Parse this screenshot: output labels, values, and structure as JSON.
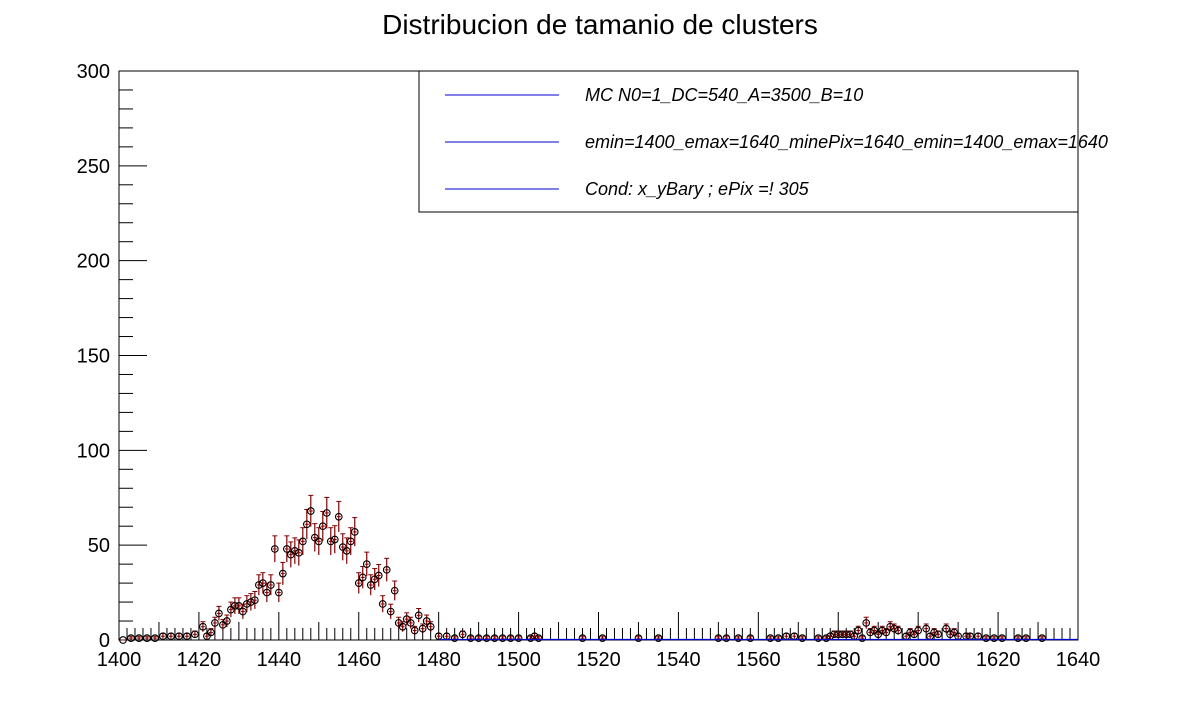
{
  "chart_data": {
    "type": "scatter",
    "title": "Distribucion de tamanio de clusters",
    "xlabel": "",
    "ylabel": "",
    "xlim": [
      1400,
      1640
    ],
    "ylim": [
      0,
      300
    ],
    "x_ticks": [
      1400,
      1420,
      1440,
      1460,
      1480,
      1500,
      1520,
      1540,
      1560,
      1580,
      1600,
      1620,
      1640
    ],
    "y_ticks": [
      0,
      50,
      100,
      150,
      200,
      250,
      300
    ],
    "grid": false,
    "legend_position": "top-right",
    "legend": [
      "MC N0=1_DC=540_A=3500_B=10",
      "emin=1400_emax=1640_minePix=1640_emin=1400_emax=1640",
      "Cond: x_yBary ; ePix =! 305"
    ],
    "colors": {
      "markers": "#000000",
      "error_bars": "#800000",
      "legend_lines": "#0000cc",
      "fit_line": "#0000cc"
    },
    "series": [
      {
        "x": [
          1401,
          1403,
          1405,
          1407,
          1409,
          1411,
          1413,
          1415,
          1417,
          1419,
          1421,
          1422,
          1423,
          1424,
          1425,
          1426,
          1427,
          1428,
          1429,
          1430,
          1431,
          1432,
          1433,
          1434,
          1435,
          1436,
          1437,
          1438,
          1439,
          1440,
          1441,
          1442,
          1443,
          1444,
          1445,
          1446,
          1447,
          1448,
          1449,
          1450,
          1451,
          1452,
          1453,
          1454,
          1455,
          1456,
          1457,
          1458,
          1459,
          1460,
          1461,
          1462,
          1463,
          1464,
          1465,
          1466,
          1467,
          1468,
          1469,
          1470,
          1471,
          1472,
          1473,
          1474,
          1475,
          1476,
          1477,
          1478,
          1480,
          1482,
          1484,
          1486,
          1488,
          1490,
          1492,
          1494,
          1496,
          1498,
          1500,
          1503,
          1504,
          1505,
          1516,
          1521,
          1530,
          1535,
          1550,
          1552,
          1555,
          1558,
          1563,
          1565,
          1567,
          1569,
          1571,
          1575,
          1577,
          1578,
          1579,
          1580,
          1581,
          1582,
          1583,
          1584,
          1585,
          1586,
          1587,
          1588,
          1589,
          1590,
          1591,
          1592,
          1593,
          1594,
          1595,
          1597,
          1598,
          1599,
          1600,
          1602,
          1603,
          1604,
          1605,
          1607,
          1608,
          1609,
          1610,
          1612,
          1613,
          1615,
          1617,
          1619,
          1621,
          1625,
          1627,
          1631
        ],
        "y": [
          0,
          1,
          1,
          1,
          1,
          2,
          2,
          2,
          2,
          3,
          7,
          2,
          4,
          9,
          14,
          8,
          10,
          16,
          18,
          18,
          15,
          19,
          20,
          21,
          29,
          30,
          25,
          29,
          48,
          25,
          35,
          48,
          45,
          47,
          46,
          52,
          61,
          68,
          54,
          52,
          60,
          67,
          52,
          53,
          65,
          49,
          47,
          52,
          57,
          30,
          33,
          40,
          29,
          32,
          34,
          19,
          37,
          15,
          26,
          9,
          7,
          11,
          9,
          5,
          13,
          6,
          10,
          7,
          2,
          2,
          1,
          3,
          1,
          1,
          1,
          1,
          1,
          1,
          1,
          1,
          2,
          1,
          1,
          1,
          1,
          1,
          1,
          1,
          1,
          1,
          1,
          1,
          2,
          2,
          1,
          1,
          1,
          2,
          3,
          3,
          3,
          3,
          3,
          2,
          5,
          1,
          9,
          4,
          5,
          3,
          5,
          4,
          7,
          6,
          5,
          2,
          4,
          3,
          5,
          6,
          2,
          4,
          3,
          6,
          3,
          4,
          2,
          2,
          2,
          2,
          1,
          1,
          1,
          1,
          1,
          1
        ]
      }
    ]
  }
}
